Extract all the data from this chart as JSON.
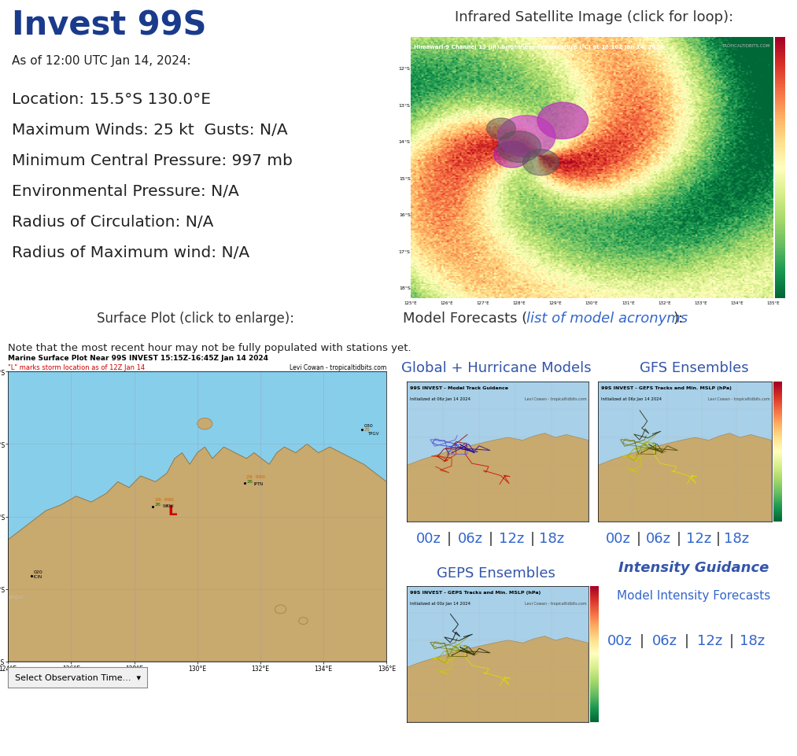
{
  "title": "Invest 99S",
  "title_color": "#1a3a8c",
  "title_fontsize": 30,
  "as_of": "As of 12:00 UTC Jan 14, 2024:",
  "as_of_fontsize": 11,
  "info_lines": [
    "Location: 15.5°S 130.0°E",
    "Maximum Winds: 25 kt  Gusts: N/A",
    "Minimum Central Pressure: 997 mb",
    "Environmental Pressure: N/A",
    "Radius of Circulation: N/A",
    "Radius of Maximum wind: N/A"
  ],
  "info_fontsize": 14.5,
  "info_color": "#222222",
  "ir_title": "Infrared Satellite Image (click for loop):",
  "ir_title_fontsize": 13,
  "ir_title_color": "#333333",
  "surface_title": "Surface Plot (click to enlarge):",
  "surface_title_fontsize": 12,
  "surface_note": "Note that the most recent hour may not be fully populated with stations yet.",
  "surface_note_fontsize": 9.5,
  "model_title_plain": "Model Forecasts (",
  "model_link": "list of model acronyms",
  "model_end": "):",
  "model_fontsize": 13,
  "model_color": "#333333",
  "model_link_color": "#3366cc",
  "gh_label": "Global + Hurricane Models",
  "gh_label_color": "#3355aa",
  "gh_label_fontsize": 13,
  "gefs_label": "GFS Ensembles",
  "gefs_label_color": "#3355aa",
  "gefs_label_fontsize": 13,
  "geps_label": "GEPS Ensembles",
  "geps_label_color": "#3355aa",
  "geps_label_fontsize": 13,
  "intensity_label": "Intensity Guidance",
  "intensity_label_color": "#3355aa",
  "intensity_label_fontsize": 13,
  "intensity_sub": "Model Intensity Forecasts",
  "intensity_sub_color": "#3366cc",
  "intensity_sub_fontsize": 11,
  "time_links": [
    "00z",
    "06z",
    "12z",
    "18z"
  ],
  "time_link_color": "#3366cc",
  "time_link_fontsize": 13,
  "time_sep_color": "#333333",
  "background_color": "#ffffff",
  "map_bg": "#87ceeb",
  "map_land": "#c8a96e",
  "map_storm_color": "#cc0000",
  "surface_map_title": "Marine Surface Plot Near 99S INVEST 15:15Z-16:45Z Jan 14 2024",
  "surface_map_sub": "\"L\" marks storm location as of 12Z Jan 14",
  "surface_map_credit": "Levi Cowan - tropicaltidbits.com",
  "select_dropdown": "Select Observation Time...",
  "gh_img_title": "99S INVEST - Model Track Guidance",
  "gh_img_sub": "Initialized at 06z Jan 14 2024",
  "gefs_img_title": "99S INVEST - GEFS Tracks and Min. MSLP (hPa)",
  "gefs_img_sub": "Initialized at 06z Jan 14 2024",
  "geps_img_title": "99S INVEST - GEPS Tracks and Min. MSLP (hPa)",
  "geps_img_sub": "Initialized at 00z Jan 14 2024",
  "ir_img_title": "Himawari-9 Channel 13 (IR) Brightness Temperature (°C) at 16:10Z Jan 14, 2024",
  "ir_img_credit": "TROPICALTIDBITS.COM"
}
